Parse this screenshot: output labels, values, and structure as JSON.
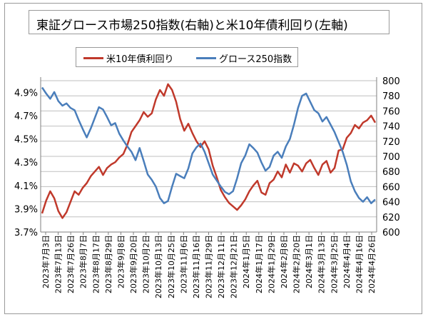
{
  "title": "東証グロース市場250指数(右軸)と米10年債利回り(左軸)",
  "colors": {
    "red": "#c0392b",
    "blue": "#4a7ebb",
    "grid": "#bfbfbf",
    "axis": "#7f7f7f"
  },
  "chart_data": {
    "type": "line",
    "title": "東証グロース市場250指数(右軸)と米10年債利回り(左軸)",
    "legend_position": "top",
    "grid": true,
    "y_left": {
      "ticks": [
        "3.7%",
        "3.9%",
        "4.1%",
        "4.3%",
        "4.5%",
        "4.7%",
        "4.9%"
      ],
      "range": [
        3.7,
        5.0
      ]
    },
    "y_right": {
      "ticks": [
        "600",
        "620",
        "640",
        "660",
        "680",
        "700",
        "720",
        "740",
        "760",
        "780",
        "800"
      ],
      "range": [
        600,
        800
      ]
    },
    "x_labels": [
      "2023年7月3日",
      "2023年7月13日",
      "2023年7月26日",
      "2023年8月7日",
      "2023年8月17日",
      "2023年8月29日",
      "2023年9月8日",
      "2023年9月20日",
      "2023年10月2日",
      "2023年10月13日",
      "2023年10月25日",
      "2023年11月6日",
      "2023年11月16日",
      "2023年11月29日",
      "2023年12月11日",
      "2023年12月21日",
      "2024年1月5日",
      "2024年1月17日",
      "2024年1月29日",
      "2024年2月8日",
      "2024年2月20日",
      "2024年3月1日",
      "2024年3月13日",
      "2024年3月25日",
      "2024年4月4日",
      "2024年4月16日",
      "2024年4月26日"
    ],
    "series": [
      {
        "name": "米10年債利回り",
        "axis": "left",
        "color": "#c0392b",
        "values": [
          3.86,
          3.97,
          4.05,
          3.99,
          3.88,
          3.82,
          3.87,
          3.96,
          4.05,
          4.02,
          4.08,
          4.12,
          4.18,
          4.22,
          4.26,
          4.19,
          4.25,
          4.28,
          4.3,
          4.34,
          4.37,
          4.45,
          4.56,
          4.61,
          4.66,
          4.73,
          4.69,
          4.72,
          4.84,
          4.92,
          4.87,
          4.97,
          4.92,
          4.82,
          4.67,
          4.57,
          4.63,
          4.55,
          4.48,
          4.43,
          4.48,
          4.41,
          4.27,
          4.17,
          4.06,
          4.0,
          3.95,
          3.92,
          3.89,
          3.93,
          3.98,
          4.05,
          4.1,
          4.14,
          4.04,
          4.02,
          4.12,
          4.15,
          4.22,
          4.17,
          4.28,
          4.21,
          4.29,
          4.27,
          4.22,
          4.29,
          4.32,
          4.25,
          4.19,
          4.28,
          4.31,
          4.21,
          4.25,
          4.4,
          4.41,
          4.51,
          4.55,
          4.62,
          4.59,
          4.64,
          4.66,
          4.7,
          4.64
        ]
      },
      {
        "name": "グロース250指数",
        "axis": "right",
        "color": "#4a7ebb",
        "values": [
          791,
          783,
          776,
          785,
          773,
          767,
          770,
          764,
          761,
          748,
          736,
          725,
          737,
          751,
          765,
          762,
          752,
          741,
          744,
          730,
          721,
          713,
          706,
          695,
          711,
          694,
          676,
          669,
          660,
          645,
          638,
          641,
          660,
          677,
          674,
          671,
          684,
          704,
          712,
          717,
          706,
          691,
          676,
          668,
          660,
          653,
          650,
          654,
          671,
          691,
          701,
          716,
          711,
          705,
          692,
          681,
          686,
          701,
          706,
          698,
          713,
          723,
          742,
          764,
          780,
          783,
          772,
          761,
          757,
          746,
          752,
          742,
          732,
          719,
          706,
          689,
          667,
          654,
          645,
          640,
          646,
          638,
          643
        ]
      }
    ]
  }
}
